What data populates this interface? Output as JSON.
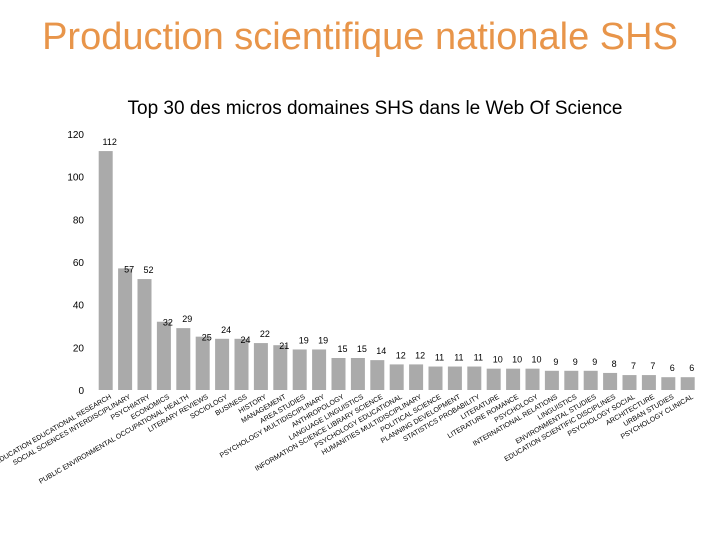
{
  "page": {
    "title": "Production scientifique nationale SHS"
  },
  "chart_data": {
    "type": "bar",
    "title": "Top 30 des micros domaines SHS dans le Web Of Science",
    "xlabel": "",
    "ylabel": "",
    "ylim": [
      0,
      120
    ],
    "yticks": [
      0,
      20,
      40,
      60,
      80,
      100,
      120
    ],
    "grid": false,
    "legend": "none",
    "bar_color": "#aaaaaa",
    "categories": [
      "EDUCATION EDUCATIONAL RESEARCH",
      "SOCIAL SCIENCES INTERDISCIPLINARY",
      "PSYCHIATRY",
      "ECONOMICS",
      "PUBLIC ENVIRONMENTAL OCCUPATIONAL HEALTH",
      "LITERARY REVIEWS",
      "SOCIOLOGY",
      "BUSINESS",
      "HISTORY",
      "MANAGEMENT",
      "AREA STUDIES",
      "PSYCHOLOGY MULTIDISCIPLINARY",
      "ANTHROPOLOGY",
      "LANGUAGE LINGUISTICS",
      "INFORMATION SCIENCE LIBRARY SCIENCE",
      "PSYCHOLOGY EDUCATIONAL",
      "HUMANITIES MULTIDISCIPLINARY",
      "POLITICAL SCIENCE",
      "PLANNING DEVELOPMENT",
      "STATISTICS PROBABILITY",
      "LITERATURE",
      "LITERATURE ROMANCE",
      "PSYCHOLOGY",
      "INTERNATIONAL RELATIONS",
      "LINGUISTICS",
      "ENVIRONMENTAL STUDIES",
      "EDUCATION SCIENTIFIC DISCIPLINES",
      "PSYCHOLOGY SOCIAL",
      "ARCHITECTURE",
      "URBAN STUDIES",
      "PSYCHOLOGY CLINICAL"
    ],
    "values": [
      112,
      57,
      52,
      32,
      29,
      25,
      24,
      24,
      22,
      21,
      19,
      19,
      15,
      15,
      14,
      12,
      12,
      11,
      11,
      11,
      10,
      10,
      10,
      9,
      9,
      9,
      8,
      7,
      7,
      6,
      6
    ]
  }
}
